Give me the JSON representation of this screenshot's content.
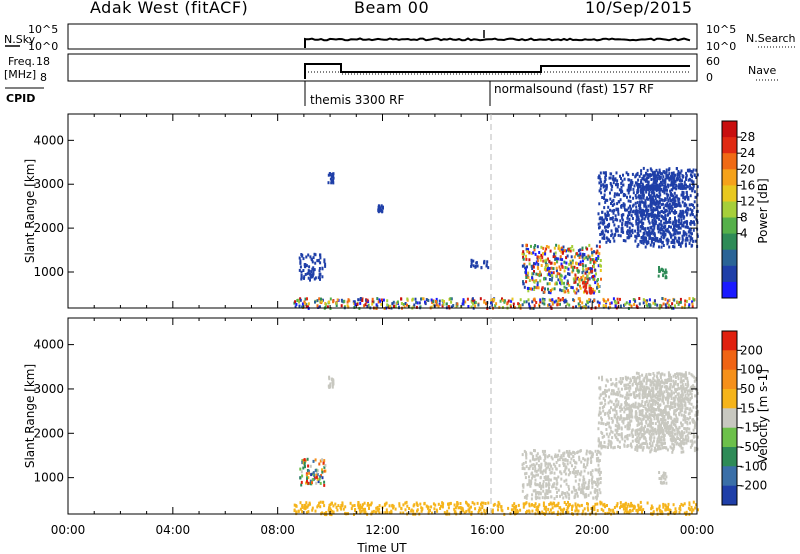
{
  "header": {
    "station": "Adak West (fitACF)",
    "beam": "Beam 00",
    "date": "10/Sep/2015"
  },
  "strips": {
    "nsky": {
      "label": "N.Sky",
      "tick_hi": "10^5",
      "tick_lo": "10^0",
      "right_label": "N.Search"
    },
    "freq": {
      "label_1": "Freq.",
      "label_2": "[MHz]",
      "tick_hi": "18",
      "tick_lo": "8",
      "right_hi": "60",
      "right_lo": "0",
      "right_label": "Nave"
    },
    "cpid": {
      "label": "CPID",
      "programs": [
        {
          "name": "themis 3300 RF",
          "start_hour": 8.7
        },
        {
          "name": "normalsound (fast) 157 RF",
          "start_hour": 16.0
        }
      ]
    }
  },
  "chart_data": [
    {
      "type": "heatmap",
      "name": "power",
      "ylabel": "Slant Range [km]",
      "xlim": [
        0,
        24
      ],
      "ylim": [
        180,
        4600
      ],
      "yticks": [
        1000,
        2000,
        3000,
        4000
      ],
      "colorbar": {
        "label": "Power [dB]",
        "ticks": [
          "28",
          "24",
          "20",
          "16",
          "12",
          "8",
          "4"
        ],
        "colors": [
          "#1a1aff",
          "#1f3fa8",
          "#2a6496",
          "#2e8b57",
          "#55b04a",
          "#a6cf3a",
          "#e8c81f",
          "#f5a21b",
          "#f06a14",
          "#e02a12",
          "#c80f0f"
        ]
      },
      "patches": [
        {
          "t0": 8.6,
          "t1": 24.0,
          "r0": 200,
          "r1": 430,
          "color": "mixed"
        },
        {
          "t0": 8.8,
          "t1": 9.8,
          "r0": 850,
          "r1": 1450,
          "color": "#1f3fa8"
        },
        {
          "t0": 9.9,
          "t1": 10.1,
          "r0": 3050,
          "r1": 3300,
          "color": "#1f3fa8"
        },
        {
          "t0": 15.3,
          "t1": 16.0,
          "r0": 1100,
          "r1": 1300,
          "color": "#1f3fa8"
        },
        {
          "t0": 17.3,
          "t1": 20.3,
          "r0": 550,
          "r1": 1650,
          "color": "mixed"
        },
        {
          "t0": 19.6,
          "t1": 20.0,
          "r0": 550,
          "r1": 800,
          "color": "#e02a12"
        },
        {
          "t0": 20.2,
          "t1": 23.6,
          "r0": 1700,
          "r1": 3300,
          "color": "#1f3fa8"
        },
        {
          "t0": 21.6,
          "t1": 24.0,
          "r0": 1600,
          "r1": 3400,
          "color": "#1f3fa8"
        },
        {
          "t0": 22.5,
          "t1": 22.8,
          "r0": 900,
          "r1": 1150,
          "color": "#2e8b57"
        },
        {
          "t0": 11.8,
          "t1": 12.0,
          "r0": 2400,
          "r1": 2550,
          "color": "#1f3fa8"
        }
      ]
    },
    {
      "type": "heatmap",
      "name": "velocity",
      "xlabel": "Time UT",
      "ylabel": "Slant Range [km]",
      "xlim": [
        0,
        24
      ],
      "ylim": [
        180,
        4600
      ],
      "xticks": [
        "00:00",
        "04:00",
        "08:00",
        "12:00",
        "16:00",
        "20:00",
        "00:00"
      ],
      "yticks": [
        1000,
        2000,
        3000,
        4000
      ],
      "colorbar": {
        "label": "Velocity [m s-1]",
        "ticks": [
          "200",
          "100",
          "50",
          "15",
          "-15",
          "-50",
          "-100",
          "-200"
        ],
        "colors": [
          "#1f3fa8",
          "#3a6fa8",
          "#2e8b57",
          "#6cc04a",
          "#c8c8c0",
          "#f5b41b",
          "#f5901b",
          "#f06414",
          "#e0200f"
        ]
      },
      "patches": [
        {
          "t0": 8.6,
          "t1": 24.0,
          "r0": 200,
          "r1": 480,
          "color": "#f5b41b"
        },
        {
          "t0": 8.8,
          "t1": 9.8,
          "r0": 850,
          "r1": 1450,
          "color": "mixed"
        },
        {
          "t0": 9.9,
          "t1": 10.1,
          "r0": 3050,
          "r1": 3300,
          "color": "#c8c8c0"
        },
        {
          "t0": 17.3,
          "t1": 20.3,
          "r0": 550,
          "r1": 1650,
          "color": "#c8c8c0"
        },
        {
          "t0": 20.2,
          "t1": 23.6,
          "r0": 1700,
          "r1": 3300,
          "color": "#c8c8c0"
        },
        {
          "t0": 21.6,
          "t1": 24.0,
          "r0": 1600,
          "r1": 3400,
          "color": "#c8c8c0"
        },
        {
          "t0": 22.5,
          "t1": 22.8,
          "r0": 900,
          "r1": 1150,
          "color": "#c8c8c0"
        }
      ]
    }
  ]
}
